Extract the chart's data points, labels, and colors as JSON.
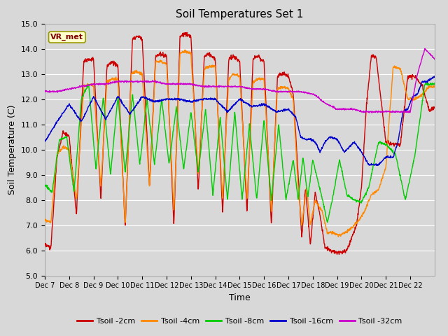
{
  "title": "Soil Temperatures Set 1",
  "xlabel": "Time",
  "ylabel": "Soil Temperature (C)",
  "ylim": [
    5.0,
    15.0
  ],
  "yticks": [
    5.0,
    6.0,
    7.0,
    8.0,
    9.0,
    10.0,
    11.0,
    12.0,
    13.0,
    14.0,
    15.0
  ],
  "xtick_labels": [
    "Dec 7",
    "Dec 8",
    "Dec 9",
    "Dec 10",
    "Dec 11",
    "Dec 12",
    "Dec 13",
    "Dec 14",
    "Dec 15",
    "Dec 16",
    "Dec 17",
    "Dec 18",
    "Dec 19",
    "Dec 20",
    "Dec 21",
    "Dec 22"
  ],
  "series_colors": [
    "#cc0000",
    "#ff8800",
    "#00cc00",
    "#0000cc",
    "#cc00cc"
  ],
  "series_labels": [
    "Tsoil -2cm",
    "Tsoil -4cm",
    "Tsoil -8cm",
    "Tsoil -16cm",
    "Tsoil -32cm"
  ],
  "legend_label": "VR_met",
  "bg_outer": "#d8d8d8",
  "bg_plot": "#d8d8d8",
  "grid_color": "#ffffff",
  "n_days": 16,
  "t2_pts": [
    0,
    0.25,
    0.5,
    0.75,
    1.0,
    1.3,
    1.6,
    1.9,
    2.0,
    2.3,
    2.55,
    2.75,
    3.0,
    3.3,
    3.6,
    3.85,
    4.0,
    4.3,
    4.55,
    4.75,
    5.0,
    5.3,
    5.55,
    5.75,
    6.0,
    6.3,
    6.55,
    6.75,
    7.0,
    7.3,
    7.55,
    7.75,
    8.0,
    8.3,
    8.55,
    8.75,
    9.0,
    9.3,
    9.55,
    9.75,
    10.0,
    10.2,
    10.4,
    10.55,
    10.7,
    10.9,
    11.1,
    11.3,
    11.5,
    11.7,
    12.0,
    12.2,
    12.4,
    12.6,
    12.8,
    13.0,
    13.2,
    13.4,
    13.6,
    13.8,
    14.0,
    14.3,
    14.6,
    14.9,
    15.2,
    15.5,
    15.8,
    16.0
  ],
  "v2_pts": [
    6.2,
    6.1,
    9.7,
    10.7,
    10.5,
    7.4,
    13.5,
    13.6,
    13.6,
    8.0,
    13.3,
    13.5,
    13.3,
    6.9,
    14.4,
    14.5,
    14.4,
    8.5,
    13.7,
    13.8,
    13.7,
    7.0,
    14.5,
    14.6,
    14.5,
    8.4,
    13.7,
    13.8,
    13.6,
    7.5,
    13.6,
    13.7,
    13.5,
    7.5,
    13.6,
    13.7,
    13.5,
    7.0,
    12.9,
    13.0,
    12.9,
    12.2,
    9.0,
    6.5,
    8.5,
    6.2,
    8.3,
    7.4,
    6.1,
    6.0,
    5.9,
    5.9,
    6.0,
    6.5,
    7.0,
    8.5,
    11.7,
    13.7,
    13.7,
    12.0,
    10.3,
    10.2,
    10.2,
    12.9,
    12.9,
    12.5,
    11.5,
    11.7
  ],
  "t4_pts": [
    0,
    0.25,
    0.5,
    0.75,
    1.0,
    1.3,
    1.6,
    1.9,
    2.0,
    2.3,
    2.55,
    2.75,
    3.0,
    3.3,
    3.55,
    3.75,
    4.0,
    4.3,
    4.55,
    4.75,
    5.0,
    5.3,
    5.55,
    5.75,
    6.0,
    6.3,
    6.55,
    6.75,
    7.0,
    7.3,
    7.55,
    7.75,
    8.0,
    8.3,
    8.55,
    8.75,
    9.0,
    9.3,
    9.55,
    9.75,
    10.0,
    10.2,
    10.4,
    10.55,
    10.75,
    10.9,
    11.1,
    11.4,
    11.6,
    11.8,
    12.1,
    12.3,
    12.5,
    12.7,
    12.9,
    13.1,
    13.4,
    13.7,
    14.0,
    14.3,
    14.6,
    14.9,
    15.2,
    15.5,
    15.8,
    16.0
  ],
  "v4_pts": [
    7.2,
    7.1,
    9.8,
    10.1,
    10.0,
    8.0,
    12.5,
    12.6,
    12.5,
    8.5,
    12.7,
    12.8,
    12.8,
    7.0,
    13.0,
    13.1,
    13.0,
    8.5,
    13.5,
    13.5,
    13.4,
    7.5,
    13.8,
    13.9,
    13.8,
    9.0,
    13.2,
    13.3,
    13.3,
    8.0,
    12.8,
    13.0,
    12.9,
    8.0,
    12.7,
    12.8,
    12.8,
    7.5,
    12.4,
    12.5,
    12.4,
    12.0,
    8.5,
    7.0,
    8.5,
    7.0,
    8.0,
    7.5,
    6.7,
    6.7,
    6.6,
    6.7,
    6.8,
    7.0,
    7.2,
    7.5,
    8.2,
    8.4,
    9.3,
    13.3,
    13.2,
    12.0,
    12.0,
    12.2,
    12.5,
    12.5
  ],
  "t8_pts": [
    0,
    0.3,
    0.6,
    0.9,
    1.2,
    1.5,
    1.8,
    2.1,
    2.4,
    2.7,
    3.0,
    3.3,
    3.6,
    3.9,
    4.2,
    4.5,
    4.8,
    5.1,
    5.4,
    5.7,
    6.0,
    6.3,
    6.6,
    6.9,
    7.2,
    7.5,
    7.8,
    8.1,
    8.4,
    8.7,
    9.0,
    9.3,
    9.6,
    9.9,
    10.2,
    10.4,
    10.6,
    10.8,
    11.0,
    11.2,
    11.4,
    11.6,
    11.8,
    12.1,
    12.4,
    12.7,
    13.0,
    13.3,
    13.7,
    14.0,
    14.4,
    14.8,
    15.2,
    15.6,
    16.0
  ],
  "v8_pts": [
    8.6,
    8.3,
    10.4,
    10.5,
    8.3,
    12.0,
    12.6,
    9.2,
    12.1,
    9.0,
    12.1,
    9.1,
    12.2,
    9.4,
    12.0,
    9.4,
    12.0,
    9.4,
    11.7,
    9.2,
    11.5,
    9.1,
    11.6,
    8.2,
    11.3,
    8.0,
    11.5,
    8.0,
    11.0,
    8.0,
    11.2,
    8.0,
    11.0,
    8.0,
    9.6,
    8.0,
    9.7,
    8.1,
    9.6,
    8.8,
    8.0,
    7.1,
    8.0,
    9.6,
    8.2,
    8.0,
    7.9,
    8.5,
    10.3,
    10.2,
    9.8,
    8.0,
    9.8,
    12.6,
    12.6
  ],
  "t16_pts": [
    0,
    0.5,
    1.0,
    1.5,
    2.0,
    2.5,
    3.0,
    3.5,
    4.0,
    4.5,
    5.0,
    5.5,
    6.0,
    6.5,
    7.0,
    7.5,
    8.0,
    8.5,
    9.0,
    9.5,
    10.0,
    10.3,
    10.5,
    10.7,
    10.9,
    11.1,
    11.3,
    11.5,
    11.7,
    12.0,
    12.3,
    12.7,
    13.0,
    13.3,
    13.7,
    14.0,
    14.3,
    14.5,
    14.7,
    14.9,
    15.1,
    15.3,
    15.5,
    15.7,
    16.0
  ],
  "v16_pts": [
    10.3,
    11.1,
    11.8,
    11.1,
    12.1,
    11.2,
    12.1,
    11.4,
    12.1,
    11.9,
    12.0,
    12.0,
    11.9,
    12.0,
    12.0,
    11.5,
    12.0,
    11.7,
    11.8,
    11.5,
    11.6,
    11.3,
    10.5,
    10.4,
    10.4,
    10.3,
    9.9,
    10.3,
    10.5,
    10.4,
    9.9,
    10.3,
    9.9,
    9.4,
    9.4,
    9.7,
    9.7,
    10.3,
    11.5,
    11.6,
    12.1,
    12.2,
    12.7,
    12.7,
    12.9
  ],
  "t32_pts": [
    0,
    0.5,
    1.0,
    1.5,
    2.0,
    2.5,
    3.0,
    3.5,
    4.0,
    4.5,
    5.0,
    5.5,
    6.0,
    6.5,
    7.0,
    7.5,
    8.0,
    8.5,
    9.0,
    9.5,
    10.0,
    10.5,
    11.0,
    11.2,
    11.4,
    11.6,
    11.8,
    12.0,
    12.3,
    12.7,
    13.0,
    13.5,
    14.0,
    14.5,
    15.0,
    15.3,
    15.6,
    16.0
  ],
  "v32_pts": [
    12.3,
    12.3,
    12.4,
    12.5,
    12.6,
    12.6,
    12.7,
    12.7,
    12.7,
    12.7,
    12.6,
    12.6,
    12.6,
    12.5,
    12.5,
    12.5,
    12.5,
    12.4,
    12.4,
    12.3,
    12.3,
    12.3,
    12.2,
    12.1,
    11.9,
    11.8,
    11.7,
    11.6,
    11.6,
    11.6,
    11.5,
    11.5,
    11.5,
    11.5,
    11.5,
    13.0,
    14.0,
    13.6
  ]
}
